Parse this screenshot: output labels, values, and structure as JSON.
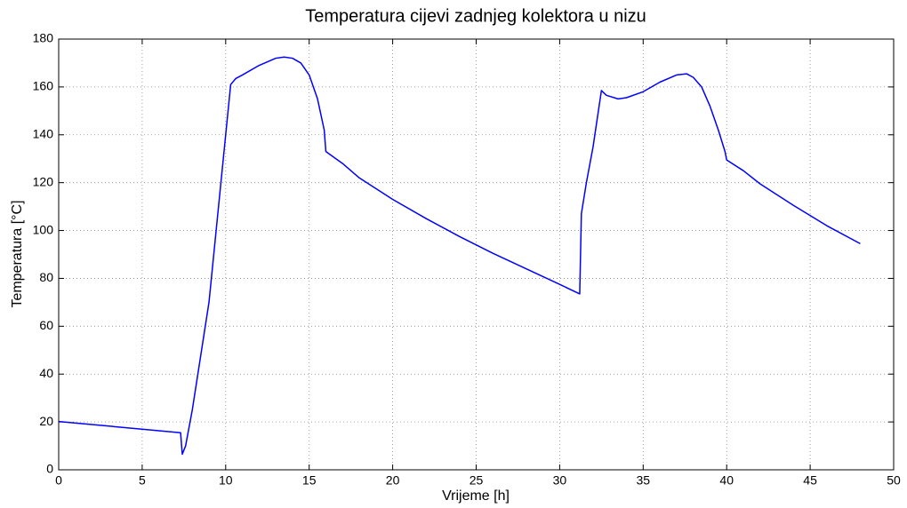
{
  "chart_data": {
    "type": "line",
    "title": "Temperatura cijevi zadnjeg kolektora u nizu",
    "x_label": "Vrijeme [h]",
    "y_label": "Temperatura [°C]",
    "x": [
      0,
      7.3,
      7.4,
      7.6,
      8,
      9,
      10,
      10.3,
      10.6,
      11,
      12,
      13,
      13.5,
      14,
      14.5,
      15,
      15.5,
      15.9,
      16,
      17,
      18,
      20,
      22,
      24,
      26,
      28,
      30,
      31.2,
      31.3,
      31.6,
      32,
      32.5,
      32.8,
      33.5,
      34,
      35,
      36,
      37,
      37.6,
      38,
      38.5,
      39,
      39.5,
      39.9,
      40,
      41,
      42,
      44,
      46,
      48
    ],
    "values": [
      20.2,
      15.5,
      6.5,
      10,
      25,
      70,
      140,
      161,
      163.5,
      165,
      169,
      172,
      172.5,
      172,
      170,
      165,
      155,
      142,
      133,
      128,
      122,
      113,
      105,
      97.5,
      90.5,
      84,
      77.5,
      73.5,
      107,
      120,
      135,
      158.5,
      156.5,
      155,
      155.5,
      158,
      162,
      165,
      165.5,
      164,
      160,
      152,
      142,
      133,
      129.5,
      125,
      119.5,
      110.5,
      102,
      94.5
    ],
    "color": "#0000ff",
    "xlim": [
      0,
      50
    ],
    "xticks": [
      0,
      5,
      10,
      15,
      20,
      25,
      30,
      35,
      40,
      45,
      50
    ],
    "ylim": [
      0,
      180
    ],
    "yticks": [
      0,
      20,
      40,
      60,
      80,
      100,
      120,
      140,
      160,
      180
    ],
    "grid": true
  }
}
